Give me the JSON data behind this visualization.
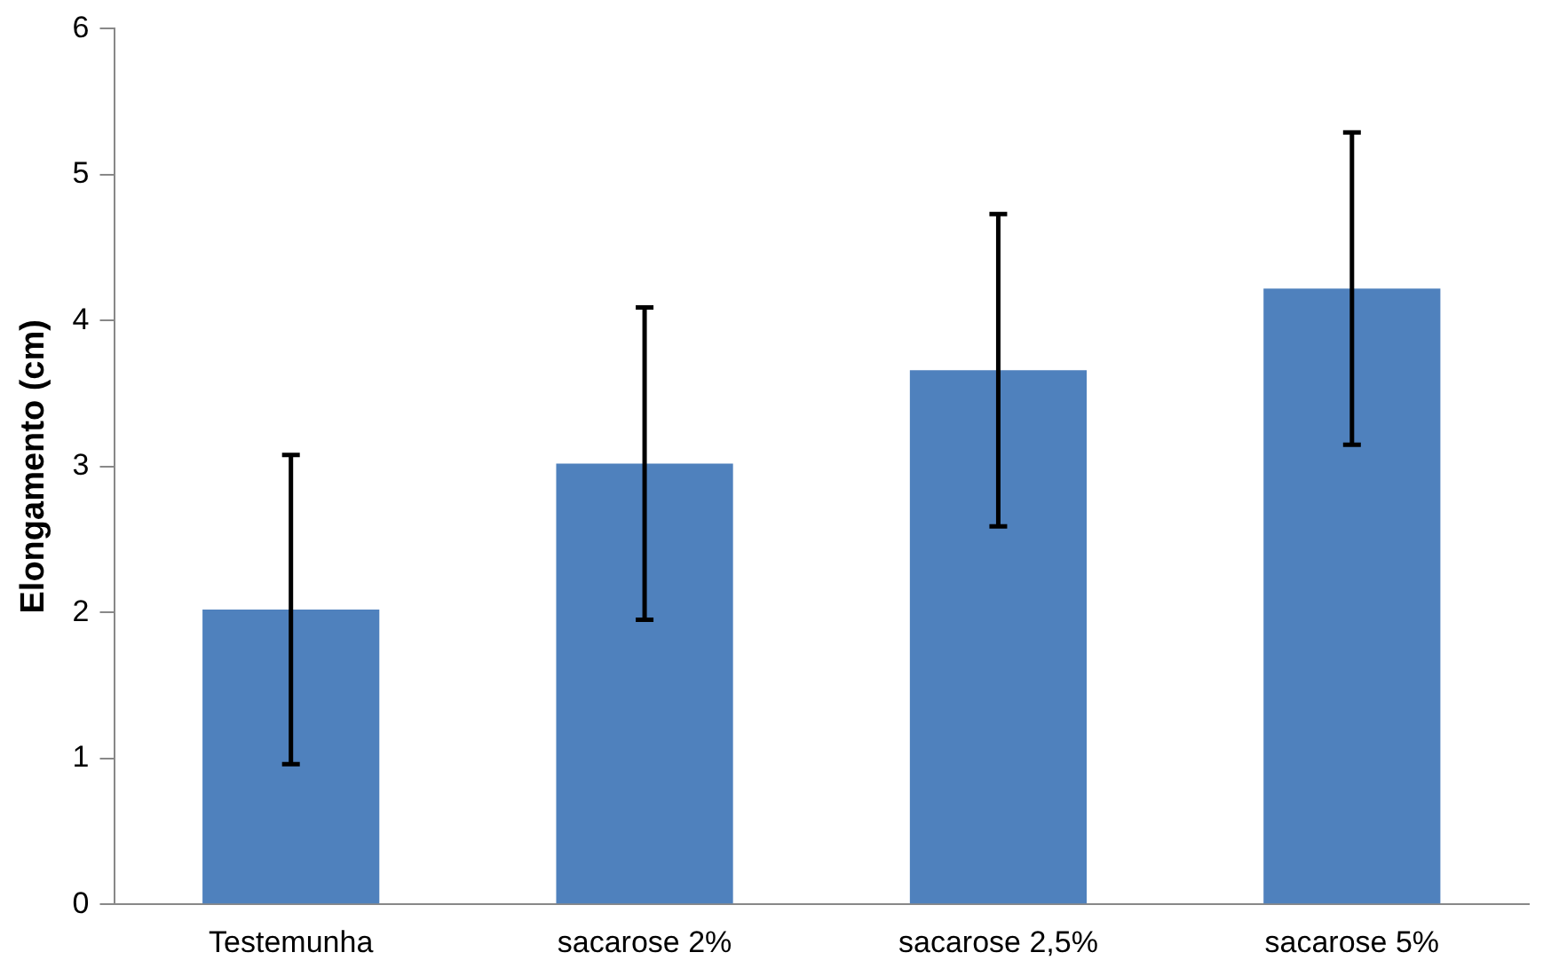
{
  "chart_data": {
    "type": "bar",
    "ylabel": "Elongamento (cm)",
    "categories": [
      "Testemunha",
      "sacarose 2%",
      "sacarose 2,5%",
      "sacarose 5%"
    ],
    "values": [
      2.02,
      3.02,
      3.66,
      4.22
    ],
    "errors": [
      1.06,
      1.07,
      1.07,
      1.07
    ],
    "color": "#4f81bd",
    "ylim": [
      0,
      6
    ],
    "yticks": [
      0,
      1,
      2,
      3,
      4,
      5,
      6
    ],
    "grid": false,
    "legend": false
  }
}
